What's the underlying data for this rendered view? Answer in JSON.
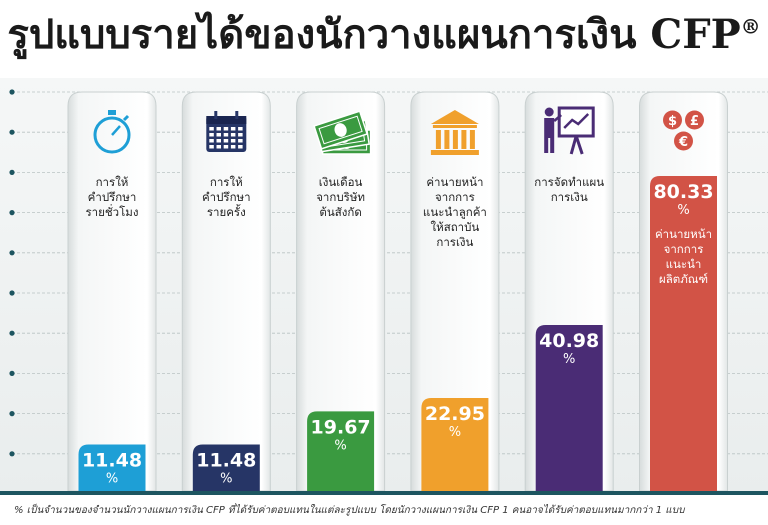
{
  "title": "รูปแบบรายได้ของนักวางแผนการเงิน CFP",
  "title_mark": "®",
  "footnote": "% เป็นจำนวนของจำนวนนักวางแผนการเงิน CFP ที่ได้รับค่าตอบแทนในแต่ละรูปแบบ โดยนักวางแผนการเงิน CFP 1 คนอาจได้รับค่าตอบแทนมากกว่า 1 แบบ",
  "chart_data": {
    "type": "bar",
    "ylim": [
      0,
      100
    ],
    "unit": "%",
    "grid": true,
    "categories": [
      "การให้ คำปรึกษา รายชั่วโมง",
      "การให้ คำปรึกษา รายครั้ง",
      "เงินเดือน จากบริษัท ต้นสังกัด",
      "ค่านายหน้า จากการ แนะนำลูกค้า ให้สถาบัน การเงิน",
      "การจัดทำแผน การเงิน",
      "ค่านายหน้า จากการ แนะนำ ผลิตภัณฑ์"
    ],
    "values": [
      11.48,
      11.48,
      19.67,
      22.95,
      40.98,
      80.33
    ],
    "value_labels": [
      "11.48",
      "11.48",
      "19.67",
      "22.95",
      "40.98",
      "80.33"
    ],
    "label_lines": [
      [
        "การให้",
        "คำปรึกษา",
        "รายชั่วโมง"
      ],
      [
        "การให้",
        "คำปรึกษา",
        "รายครั้ง"
      ],
      [
        "เงินเดือน",
        "จากบริษัท",
        "ต้นสังกัด"
      ],
      [
        "ค่านายหน้า",
        "จากการ",
        "แนะนำลูกค้า",
        "ให้สถาบัน",
        "การเงิน"
      ],
      [
        "การจัดทำแผน",
        "การเงิน"
      ],
      [
        "ค่านายหน้า",
        "จากการ",
        "แนะนำ",
        "ผลิตภัณฑ์"
      ]
    ],
    "colors": [
      "#1e9fd6",
      "#263566",
      "#3a9a40",
      "#f0a02c",
      "#4a2c75",
      "#d25346"
    ],
    "icons": [
      "stopwatch-icon",
      "calendar-icon",
      "money-icon",
      "bank-icon",
      "presentation-icon",
      "currency-coins-icon"
    ]
  }
}
